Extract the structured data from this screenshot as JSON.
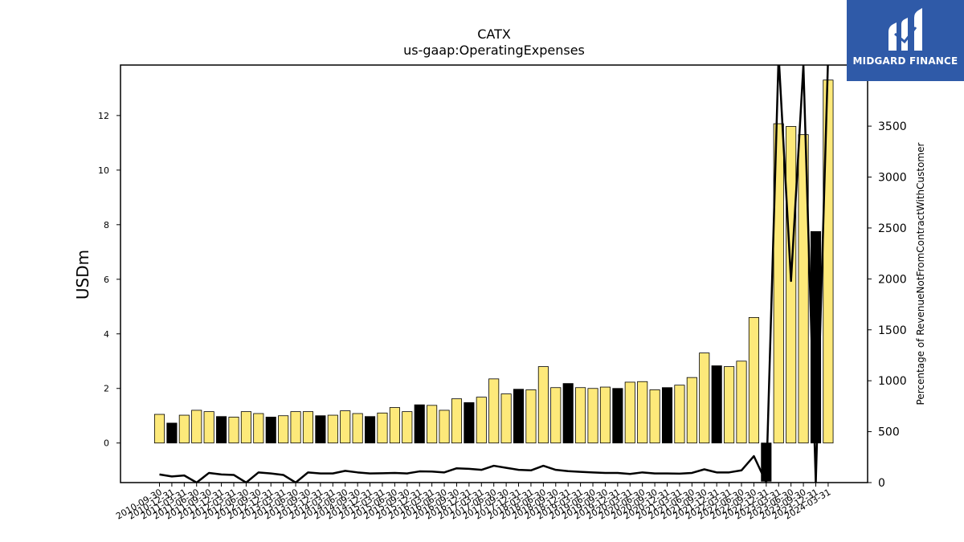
{
  "logo": {
    "text": "MIDGARD FINANCE",
    "bg": "#2f5aa8"
  },
  "chart_data": {
    "type": "bar",
    "title": "CATX",
    "subtitle": "us-gaap:OperatingExpenses",
    "ylabel": "USDm",
    "y2label": "Percentage of RevenueNotFromContractWithCustomer",
    "ylim": [
      -1.45,
      13.85
    ],
    "y2lim": [
      0,
      4100
    ],
    "yticks": [
      0,
      2,
      4,
      6,
      8,
      10,
      12
    ],
    "y2ticks": [
      0,
      500,
      1000,
      1500,
      2000,
      2500,
      3000,
      3500
    ],
    "colors": {
      "bar": "#fde97a",
      "bar_alt": "#000000",
      "line": "#000000"
    },
    "categories": [
      "2010-09-30",
      "2010-12-31",
      "2011-03-31",
      "2011-06-30",
      "2011-09-30",
      "2011-12-31",
      "2012-03-31",
      "2012-06-30",
      "2012-09-30",
      "2012-12-31",
      "2013-03-31",
      "2013-06-30",
      "2013-09-30",
      "2013-12-31",
      "2014-03-31",
      "2014-06-30",
      "2014-09-30",
      "2014-12-31",
      "2015-03-31",
      "2015-06-30",
      "2015-09-30",
      "2015-12-31",
      "2016-03-31",
      "2016-06-30",
      "2016-09-30",
      "2016-12-31",
      "2017-03-31",
      "2017-06-30",
      "2017-09-30",
      "2017-12-31",
      "2018-03-31",
      "2018-06-30",
      "2018-09-30",
      "2018-12-31",
      "2019-03-31",
      "2019-06-30",
      "2019-09-30",
      "2019-12-31",
      "2020-03-31",
      "2020-06-30",
      "2020-09-30",
      "2020-12-31",
      "2021-03-31",
      "2021-06-30",
      "2021-09-30",
      "2021-12-31",
      "2022-03-31",
      "2022-06-30",
      "2022-09-30",
      "2022-12-31",
      "2023-03-31",
      "2023-06-30",
      "2023-09-30",
      "2023-12-31",
      "2024-03-31"
    ],
    "series": [
      {
        "values": [
          1.05,
          0.73,
          1.02,
          1.2,
          1.15,
          0.97,
          0.95,
          1.15,
          1.08,
          0.95,
          1.0,
          1.15,
          1.15,
          1.0,
          1.02,
          1.18,
          1.08,
          0.97,
          1.1,
          1.3,
          1.15,
          1.4,
          1.38,
          1.2,
          1.62,
          1.48,
          1.68,
          2.35,
          1.8,
          1.97,
          1.95,
          2.8,
          2.03,
          2.18,
          2.03,
          2.0,
          2.05,
          2.0,
          2.23,
          2.25,
          1.95,
          2.03,
          2.12,
          2.4,
          3.3,
          2.83,
          2.8,
          3.0,
          4.6,
          -1.4,
          11.7,
          11.6,
          11.3,
          7.75,
          13.3
        ],
        "highlight": [
          false,
          true,
          false,
          false,
          false,
          true,
          false,
          false,
          false,
          true,
          false,
          false,
          false,
          true,
          false,
          false,
          false,
          true,
          false,
          false,
          false,
          true,
          false,
          false,
          false,
          true,
          false,
          false,
          false,
          true,
          false,
          false,
          false,
          true,
          false,
          false,
          false,
          true,
          false,
          false,
          false,
          true,
          false,
          false,
          false,
          true,
          false,
          false,
          false,
          true,
          false,
          false,
          false,
          true,
          false
        ]
      },
      {
        "axis": "right",
        "values": [
          80,
          60,
          70,
          0,
          95,
          80,
          75,
          0,
          100,
          90,
          75,
          0,
          100,
          90,
          90,
          115,
          100,
          90,
          92,
          95,
          90,
          110,
          108,
          100,
          140,
          135,
          125,
          165,
          145,
          125,
          120,
          165,
          125,
          112,
          105,
          100,
          95,
          95,
          85,
          100,
          90,
          90,
          88,
          95,
          130,
          100,
          100,
          120,
          260,
          0,
          4200,
          1980,
          4100,
          0,
          4200
        ]
      }
    ]
  }
}
